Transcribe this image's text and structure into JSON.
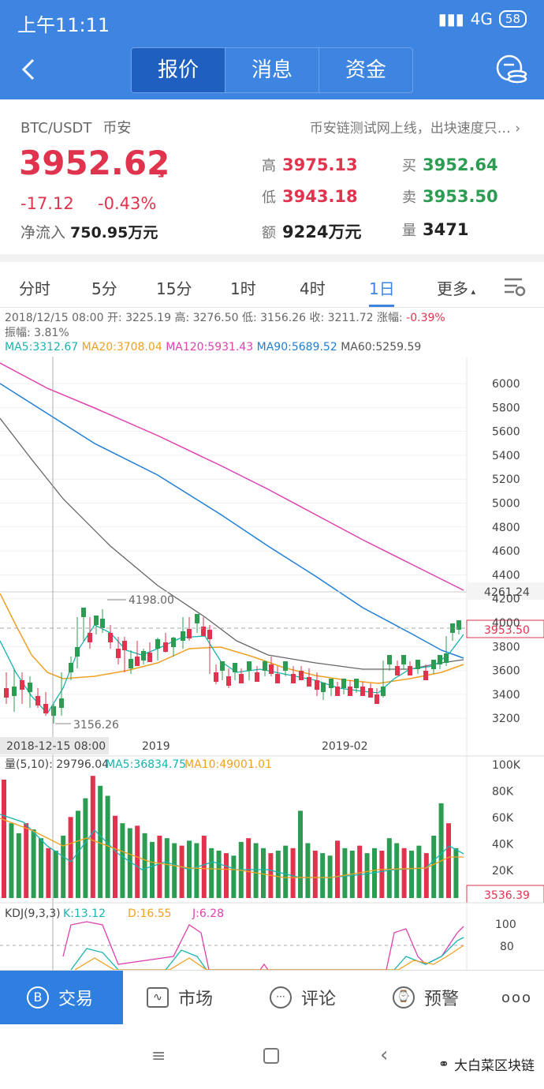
{
  "status": {
    "time": "上午11:11",
    "network": "4G",
    "battery": "58"
  },
  "nav": {
    "tabs": [
      "报价",
      "消息",
      "资金"
    ]
  },
  "quote": {
    "pair": "BTC/USDT",
    "exchange": "币安",
    "news": "币安链测试网上线，出块速度只…",
    "price": "3952.62",
    "change": "-17.12",
    "change_pct": "-0.43%",
    "inflow_label": "净流入",
    "inflow": "750.95万元",
    "high_label": "高",
    "high": "3975.13",
    "low_label": "低",
    "low": "3943.18",
    "amount_label": "额",
    "amount": "9224万元",
    "buy_label": "买",
    "buy": "3952.64",
    "sell_label": "卖",
    "sell": "3953.50",
    "volume_label": "量",
    "volume": "3471"
  },
  "periods": [
    "分时",
    "5分",
    "15分",
    "1时",
    "4时",
    "1日",
    "更多"
  ],
  "ohlc": {
    "line1": "2018/12/15 08:00 开: 3225.19 高: 3276.50 低: 3156.26 收: 3211.72 涨幅: ",
    "change": "-0.39%",
    "line2": "振幅: 3.81%"
  },
  "ma": [
    {
      "label": "MA5:3312.67",
      "color": "#17b4b0"
    },
    {
      "label": "MA20:3708.04",
      "color": "#f0a020"
    },
    {
      "label": "MA120:5931.43",
      "color": "#e040b0"
    },
    {
      "label": "MA90:5689.52",
      "color": "#1f7fd6"
    },
    {
      "label": "MA60:5259.59",
      "color": "#555555"
    }
  ],
  "chart_data": {
    "type": "candlestick",
    "price_ticks": [
      "6000",
      "5800",
      "5600",
      "5400",
      "5200",
      "5000",
      "4800",
      "4600",
      "4400",
      "4200",
      "4000",
      "3800",
      "3600",
      "3400",
      "3200"
    ],
    "marks": {
      "high": "4198.00",
      "low": "3156.26",
      "last": "3953.50",
      "level": "4261.24"
    },
    "x_labels": [
      "2018-12-15 08:00",
      "2019",
      "2019-02"
    ],
    "volume_title": "量(5,10): 29796.04",
    "vol_ma5": "MA5:36834.75",
    "vol_ma10": "MA10:49001.01",
    "vol_ticks": [
      "100K",
      "80K",
      "60K",
      "40K",
      "20K"
    ],
    "vol_last": "3536.39",
    "kdj_title": "KDJ(9,3,3)",
    "kdj_k": "K:13.12",
    "kdj_d": "D:16.55",
    "kdj_j": "J:6.28",
    "kdj_ticks": [
      "100",
      "80"
    ]
  },
  "bottom": {
    "tabs": [
      "交易",
      "市场",
      "评论",
      "预警"
    ],
    "more": "ooo"
  },
  "watermark": "大白菜区块链"
}
